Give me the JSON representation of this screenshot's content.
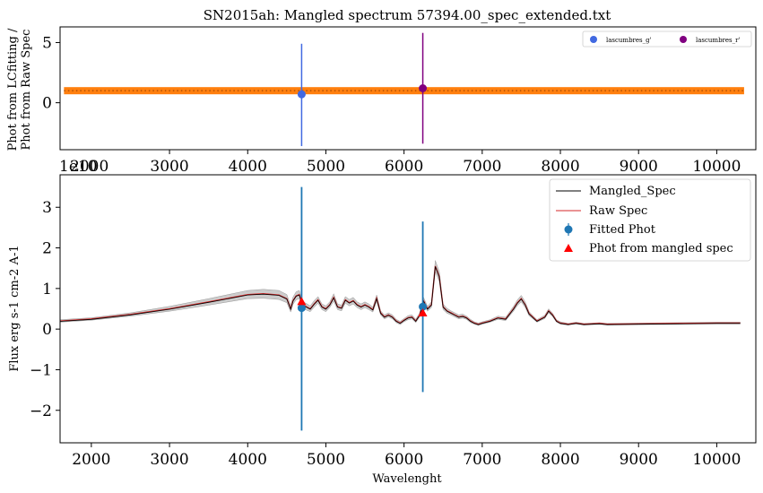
{
  "chart_data": [
    {
      "type": "scatter",
      "title": "SN2015ah: Mangled spectrum 57394.00_spec_extended.txt",
      "ylabel_lines": [
        "Phot from LCfitting /",
        "Phot from Raw Spec"
      ],
      "xlim": [
        1600,
        10500
      ],
      "ylim": [
        -3.9,
        6.3
      ],
      "xticks": [
        "3000",
        "4000",
        "5000",
        "6000",
        "7000",
        "8000",
        "9000",
        "10000"
      ],
      "xtick_values": [
        3000,
        4000,
        5000,
        6000,
        7000,
        8000,
        9000,
        10000
      ],
      "xtick_overlap_text": [
        "1e10",
        "2000"
      ],
      "yticks": [
        "0",
        "5"
      ],
      "ytick_values": [
        0,
        5
      ],
      "band": {
        "x_start": 1650,
        "x_end": 10350,
        "y": 1.0,
        "color": "#ff7f0e"
      },
      "series": [
        {
          "name": "lascumbres_g'",
          "x": 4690,
          "y": 0.7,
          "yerr_low": -3.6,
          "yerr_high": 4.9,
          "color": "#4169e1"
        },
        {
          "name": "lascumbres_r'",
          "x": 6240,
          "y": 1.2,
          "yerr_low": -3.4,
          "yerr_high": 5.8,
          "color": "#800080"
        }
      ]
    },
    {
      "type": "line",
      "xlabel": "Wavelenght",
      "ylabel": "Flux erg s-1 cm-2 A-1",
      "xlim": [
        1600,
        10500
      ],
      "ylim": [
        -2.8,
        3.8
      ],
      "xticks": [
        "2000",
        "3000",
        "4000",
        "5000",
        "6000",
        "7000",
        "8000",
        "9000",
        "10000"
      ],
      "xtick_values": [
        2000,
        3000,
        4000,
        5000,
        6000,
        7000,
        8000,
        9000,
        10000
      ],
      "yticks": [
        "−2",
        "−1",
        "0",
        "1",
        "2",
        "3"
      ],
      "ytick_values": [
        -2,
        -1,
        0,
        1,
        2,
        3
      ],
      "legend": [
        "Mangled_Spec",
        "Raw Spec",
        "Fitted Phot",
        "Phot from mangled spec"
      ],
      "spectrum": {
        "x": [
          1600,
          2000,
          2500,
          3000,
          3500,
          4000,
          4200,
          4400,
          4500,
          4550,
          4580,
          4620,
          4660,
          4700,
          4750,
          4800,
          4850,
          4900,
          4950,
          5000,
          5050,
          5100,
          5150,
          5200,
          5250,
          5300,
          5350,
          5400,
          5450,
          5500,
          5550,
          5600,
          5650,
          5700,
          5750,
          5800,
          5850,
          5900,
          5950,
          6000,
          6050,
          6100,
          6150,
          6200,
          6250,
          6300,
          6350,
          6400,
          6450,
          6500,
          6550,
          6600,
          6650,
          6700,
          6750,
          6800,
          6850,
          6900,
          6950,
          7000,
          7100,
          7200,
          7300,
          7400,
          7450,
          7500,
          7550,
          7600,
          7700,
          7800,
          7850,
          7900,
          7950,
          8000,
          8100,
          8200,
          8300,
          8400,
          8500,
          8600,
          9000,
          9500,
          10000,
          10300
        ],
        "y": [
          0.2,
          0.25,
          0.36,
          0.5,
          0.67,
          0.85,
          0.87,
          0.84,
          0.75,
          0.5,
          0.7,
          0.82,
          0.85,
          0.6,
          0.55,
          0.5,
          0.62,
          0.72,
          0.55,
          0.5,
          0.6,
          0.78,
          0.55,
          0.52,
          0.72,
          0.65,
          0.7,
          0.6,
          0.55,
          0.6,
          0.55,
          0.48,
          0.76,
          0.4,
          0.3,
          0.35,
          0.3,
          0.2,
          0.15,
          0.22,
          0.28,
          0.3,
          0.2,
          0.35,
          0.7,
          0.5,
          0.6,
          1.55,
          1.3,
          0.55,
          0.45,
          0.4,
          0.35,
          0.3,
          0.32,
          0.28,
          0.2,
          0.15,
          0.12,
          0.15,
          0.2,
          0.28,
          0.25,
          0.5,
          0.65,
          0.75,
          0.6,
          0.38,
          0.2,
          0.3,
          0.45,
          0.35,
          0.2,
          0.15,
          0.12,
          0.15,
          0.12,
          0.13,
          0.14,
          0.12,
          0.13,
          0.14,
          0.15,
          0.15
        ],
        "band_halfwidth": [
          0.03,
          0.03,
          0.04,
          0.06,
          0.08,
          0.1,
          0.11,
          0.11,
          0.1,
          0.08,
          0.09,
          0.1,
          0.1,
          0.08,
          0.08,
          0.07,
          0.08,
          0.08,
          0.07,
          0.07,
          0.07,
          0.09,
          0.07,
          0.07,
          0.08,
          0.08,
          0.08,
          0.07,
          0.07,
          0.07,
          0.07,
          0.06,
          0.08,
          0.05,
          0.05,
          0.05,
          0.05,
          0.04,
          0.04,
          0.04,
          0.05,
          0.05,
          0.04,
          0.05,
          0.08,
          0.06,
          0.07,
          0.14,
          0.12,
          0.07,
          0.06,
          0.05,
          0.05,
          0.05,
          0.05,
          0.04,
          0.04,
          0.03,
          0.03,
          0.03,
          0.03,
          0.04,
          0.04,
          0.06,
          0.07,
          0.08,
          0.07,
          0.05,
          0.03,
          0.04,
          0.05,
          0.04,
          0.03,
          0.03,
          0.02,
          0.02,
          0.02,
          0.02,
          0.02,
          0.02,
          0.02,
          0.02,
          0.02,
          0.02
        ]
      },
      "fitted_phot": [
        {
          "x": 4690,
          "y": 0.52,
          "yerr_low": -2.5,
          "yerr_high": 3.5
        },
        {
          "x": 6240,
          "y": 0.55,
          "yerr_low": -1.55,
          "yerr_high": 2.65
        }
      ],
      "mangled_phot": [
        {
          "x": 4690,
          "y": 0.68
        },
        {
          "x": 6240,
          "y": 0.4
        }
      ],
      "colors": {
        "mangled": "#000000",
        "raw": "#d62728",
        "fitted": "#1f77b4",
        "mangled_phot": "#ff0000",
        "band": "#cccccc"
      }
    }
  ]
}
